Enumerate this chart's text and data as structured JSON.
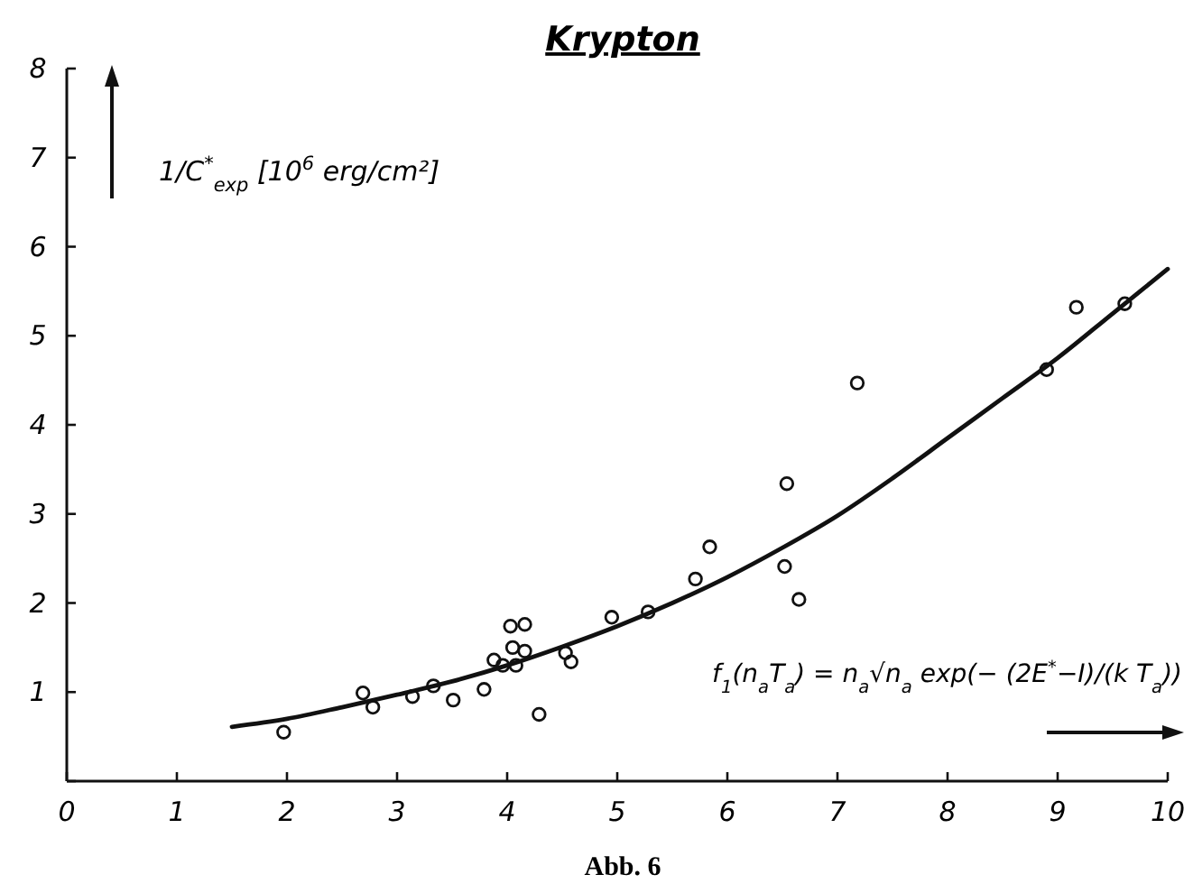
{
  "chart_data": {
    "type": "scatter",
    "title": "Krypton",
    "ylabel": "1/C$^{*}$$_{exp}$ [10$^{6}$ erg/cm²]",
    "xlabel": "f$_{1}$(n$_{a}$T$_{a}$) = n$_{a}$√n$_{a}$ exp(− (2E$^{*}$−I)/(k T$_{a}$))",
    "annotations": [
      "Abb. 6"
    ],
    "xlim": [
      0,
      10
    ],
    "xticks": [
      0,
      1,
      2,
      3,
      4,
      5,
      6,
      7,
      8,
      9,
      10
    ],
    "ylim": [
      0,
      8
    ],
    "yticks": [
      {
        "value": 0,
        "label": null
      },
      1,
      2,
      3,
      4,
      5,
      6,
      7,
      8
    ],
    "grid": false,
    "series": [
      {
        "color": "#111111",
        "marker": "circle",
        "x": [
          1.97,
          2.69,
          2.78,
          3.14,
          3.33,
          3.51,
          3.79,
          3.88,
          3.96,
          4.03,
          4.05,
          4.08,
          4.16,
          4.16,
          4.29,
          4.53,
          4.58,
          4.95,
          5.28,
          5.71,
          5.84,
          6.52,
          6.54,
          6.65,
          7.18,
          8.9,
          9.17,
          9.61
        ],
        "values": [
          0.55,
          0.99,
          0.83,
          0.95,
          1.07,
          0.91,
          1.03,
          1.36,
          1.3,
          1.74,
          1.5,
          1.3,
          1.76,
          1.46,
          0.75,
          1.44,
          1.34,
          1.84,
          1.9,
          2.27,
          2.63,
          2.41,
          3.34,
          2.04,
          4.47,
          4.62,
          5.32,
          5.36
        ]
      },
      {
        "type": "line",
        "color": "#111111",
        "marker": "none",
        "line_style": "solid",
        "x": [
          1.5,
          2,
          2.5,
          3,
          3.5,
          4,
          4.5,
          5,
          5.5,
          6,
          6.5,
          7,
          7.5,
          8,
          8.5,
          9,
          9.5,
          10
        ],
        "values": [
          0.61,
          0.7,
          0.83,
          0.97,
          1.12,
          1.3,
          1.51,
          1.74,
          2.0,
          2.29,
          2.62,
          2.98,
          3.4,
          3.85,
          4.3,
          4.75,
          5.25,
          5.75
        ]
      }
    ]
  }
}
